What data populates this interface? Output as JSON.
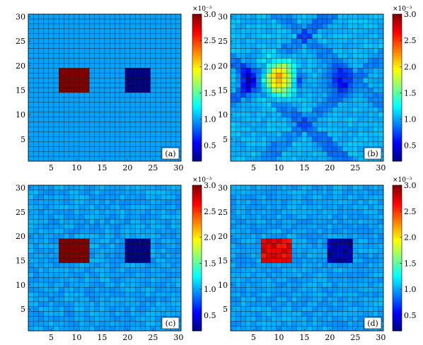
{
  "chart_data": [
    {
      "type": "heatmap",
      "panel_label": "(a)",
      "grid_size": [
        30,
        30
      ],
      "xlim": [
        0.5,
        30.5
      ],
      "ylim": [
        0.5,
        30.5
      ],
      "x_ticks": [
        5,
        10,
        15,
        20,
        25,
        30
      ],
      "y_ticks": [
        5,
        10,
        15,
        20,
        25,
        30
      ],
      "background": 0.001,
      "regions": [
        {
          "x": [
            7,
            12
          ],
          "y": [
            15,
            19
          ],
          "value": 0.003
        },
        {
          "x": [
            20,
            24
          ],
          "y": [
            15,
            19
          ],
          "value": 0.0002
        }
      ],
      "colorbar": {
        "ticks": [
          "3.0",
          "2.5",
          "2.0",
          "1.5",
          "1.0",
          "0.5"
        ],
        "exponent": "×10⁻³",
        "range": [
          0.0002,
          0.003
        ]
      }
    },
    {
      "type": "heatmap",
      "panel_label": "(b)",
      "grid_size": [
        30,
        30
      ],
      "xlim": [
        0.5,
        30.5
      ],
      "ylim": [
        0.5,
        30.5
      ],
      "x_ticks": [
        5,
        10,
        15,
        20,
        25,
        30
      ],
      "y_ticks": [
        5,
        10,
        15,
        20,
        25,
        30
      ],
      "background": 0.00105,
      "description_of_values": "smeared reconstruction: high (~0.0019-0.0021) blob near x 8-12, y 14-21; low (~0.0004-0.0006) regions near x 3-5 and x 19-24, y 14-20; X-shaped diagonal streaks",
      "colorbar": {
        "ticks": [
          "3.0",
          "2.5",
          "2.0",
          "1.5",
          "1.0",
          "0.5"
        ],
        "exponent": "×10⁻³",
        "range": [
          0.0002,
          0.003
        ]
      }
    },
    {
      "type": "heatmap",
      "panel_label": "(c)",
      "grid_size": [
        30,
        30
      ],
      "xlim": [
        0.5,
        30.5
      ],
      "ylim": [
        0.5,
        30.5
      ],
      "x_ticks": [
        5,
        10,
        15,
        20,
        25,
        30
      ],
      "y_ticks": [
        5,
        10,
        15,
        20,
        25,
        30
      ],
      "background": 0.001,
      "regions": [
        {
          "x": [
            7,
            12
          ],
          "y": [
            15,
            19
          ],
          "value": 0.003
        },
        {
          "x": [
            20,
            24
          ],
          "y": [
            15,
            19
          ],
          "value": 0.0002
        }
      ],
      "colorbar": {
        "ticks": [
          "3.0",
          "2.5",
          "2.0",
          "1.5",
          "1.0",
          "0.5"
        ],
        "exponent": "×10⁻³",
        "range": [
          0.0002,
          0.003
        ]
      }
    },
    {
      "type": "heatmap",
      "panel_label": "(d)",
      "grid_size": [
        30,
        30
      ],
      "xlim": [
        0.5,
        30.5
      ],
      "ylim": [
        0.5,
        30.5
      ],
      "x_ticks": [
        5,
        10,
        15,
        20,
        25,
        30
      ],
      "y_ticks": [
        5,
        10,
        15,
        20,
        25,
        30
      ],
      "background": 0.001,
      "regions": [
        {
          "x": [
            7,
            12
          ],
          "y": [
            15,
            19
          ],
          "value": 0.0027
        },
        {
          "x": [
            20,
            24
          ],
          "y": [
            15,
            19
          ],
          "value": 0.0003
        }
      ],
      "colorbar": {
        "ticks": [
          "3.0",
          "2.5",
          "2.0",
          "1.5",
          "1.0",
          "0.5"
        ],
        "exponent": "×10⁻³",
        "range": [
          0.0002,
          0.003
        ]
      }
    }
  ]
}
